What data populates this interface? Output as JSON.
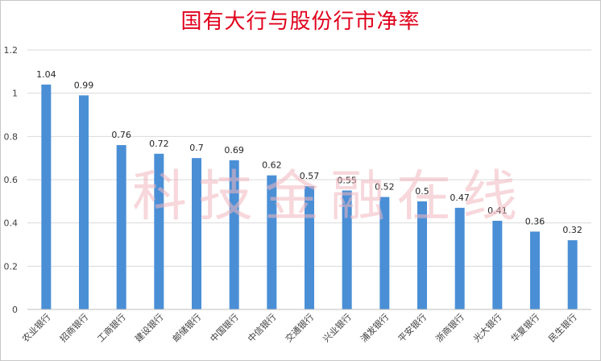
{
  "chart_data": {
    "type": "bar",
    "title": "国有大行与股份行市净率",
    "watermark": "科技金融在线",
    "categories": [
      "农业银行",
      "招商银行",
      "工商银行",
      "建设银行",
      "邮储银行",
      "中国银行",
      "中信银行",
      "交通银行",
      "兴业银行",
      "浦发银行",
      "平安银行",
      "浙商银行",
      "光大银行",
      "华夏银行",
      "民生银行"
    ],
    "values": [
      1.04,
      0.99,
      0.76,
      0.72,
      0.7,
      0.69,
      0.62,
      0.57,
      0.55,
      0.52,
      0.5,
      0.47,
      0.41,
      0.36,
      0.32
    ],
    "ylim": [
      0,
      1.2
    ],
    "yticks": [
      "0",
      "0.2",
      "0.4",
      "0.6",
      "0.8",
      "1",
      "1.2"
    ],
    "grid": true,
    "bar_color": "#4a8fd6",
    "title_color": "#e0001b"
  }
}
